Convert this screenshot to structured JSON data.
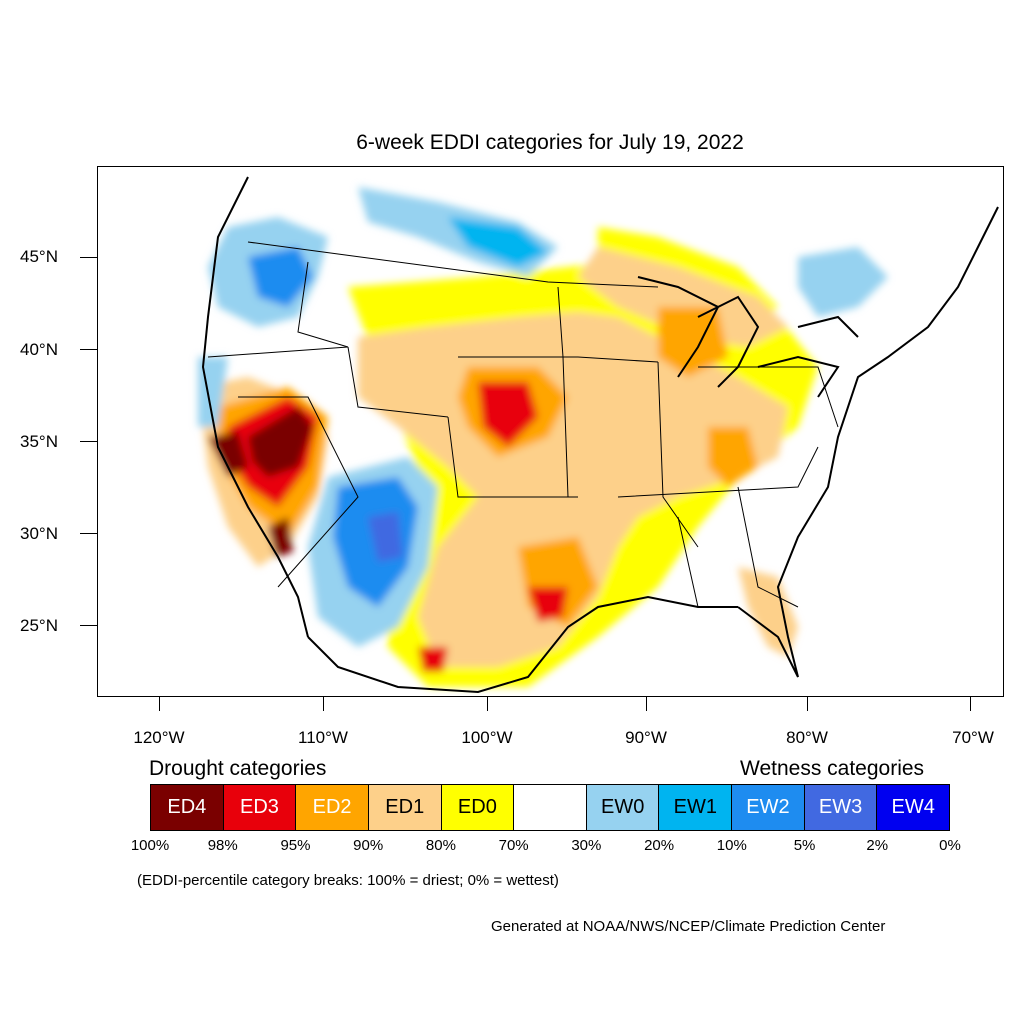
{
  "title": "6-week EDDI categories for July 19, 2022",
  "lat_labels": [
    "45°N",
    "40°N",
    "35°N",
    "30°N",
    "25°N"
  ],
  "lon_labels": [
    "120°W",
    "110°W",
    "100°W",
    "90°W",
    "80°W",
    "70°W"
  ],
  "legend": {
    "drought_title": "Drought categories",
    "wetness_title": "Wetness categories",
    "categories": [
      {
        "label": "ED4",
        "color": "#7a0000",
        "text_color": "#ffffff"
      },
      {
        "label": "ED3",
        "color": "#e8000b",
        "text_color": "#ffffff"
      },
      {
        "label": "ED2",
        "color": "#ffa500",
        "text_color": "#ffffff"
      },
      {
        "label": "ED1",
        "color": "#fdd08a",
        "text_color": "#000000"
      },
      {
        "label": "ED0",
        "color": "#ffff00",
        "text_color": "#000000"
      },
      {
        "label": "",
        "color": "#ffffff",
        "text_color": "#000000"
      },
      {
        "label": "EW0",
        "color": "#96d2f0",
        "text_color": "#000000"
      },
      {
        "label": "EW1",
        "color": "#00b4f0",
        "text_color": "#000000"
      },
      {
        "label": "EW2",
        "color": "#1e8cf0",
        "text_color": "#ffffff"
      },
      {
        "label": "EW3",
        "color": "#4169e1",
        "text_color": "#ffffff"
      },
      {
        "label": "EW4",
        "color": "#0000f0",
        "text_color": "#ffffff"
      }
    ],
    "breaks": [
      "100%",
      "98%",
      "95%",
      "90%",
      "80%",
      "70%",
      "30%",
      "20%",
      "10%",
      "5%",
      "2%",
      "0%"
    ]
  },
  "note": "(EDDI-percentile category breaks: 100% = driest; 0% = wettest)",
  "credit": "Generated at NOAA/NWS/NCEP/Climate Prediction Center"
}
